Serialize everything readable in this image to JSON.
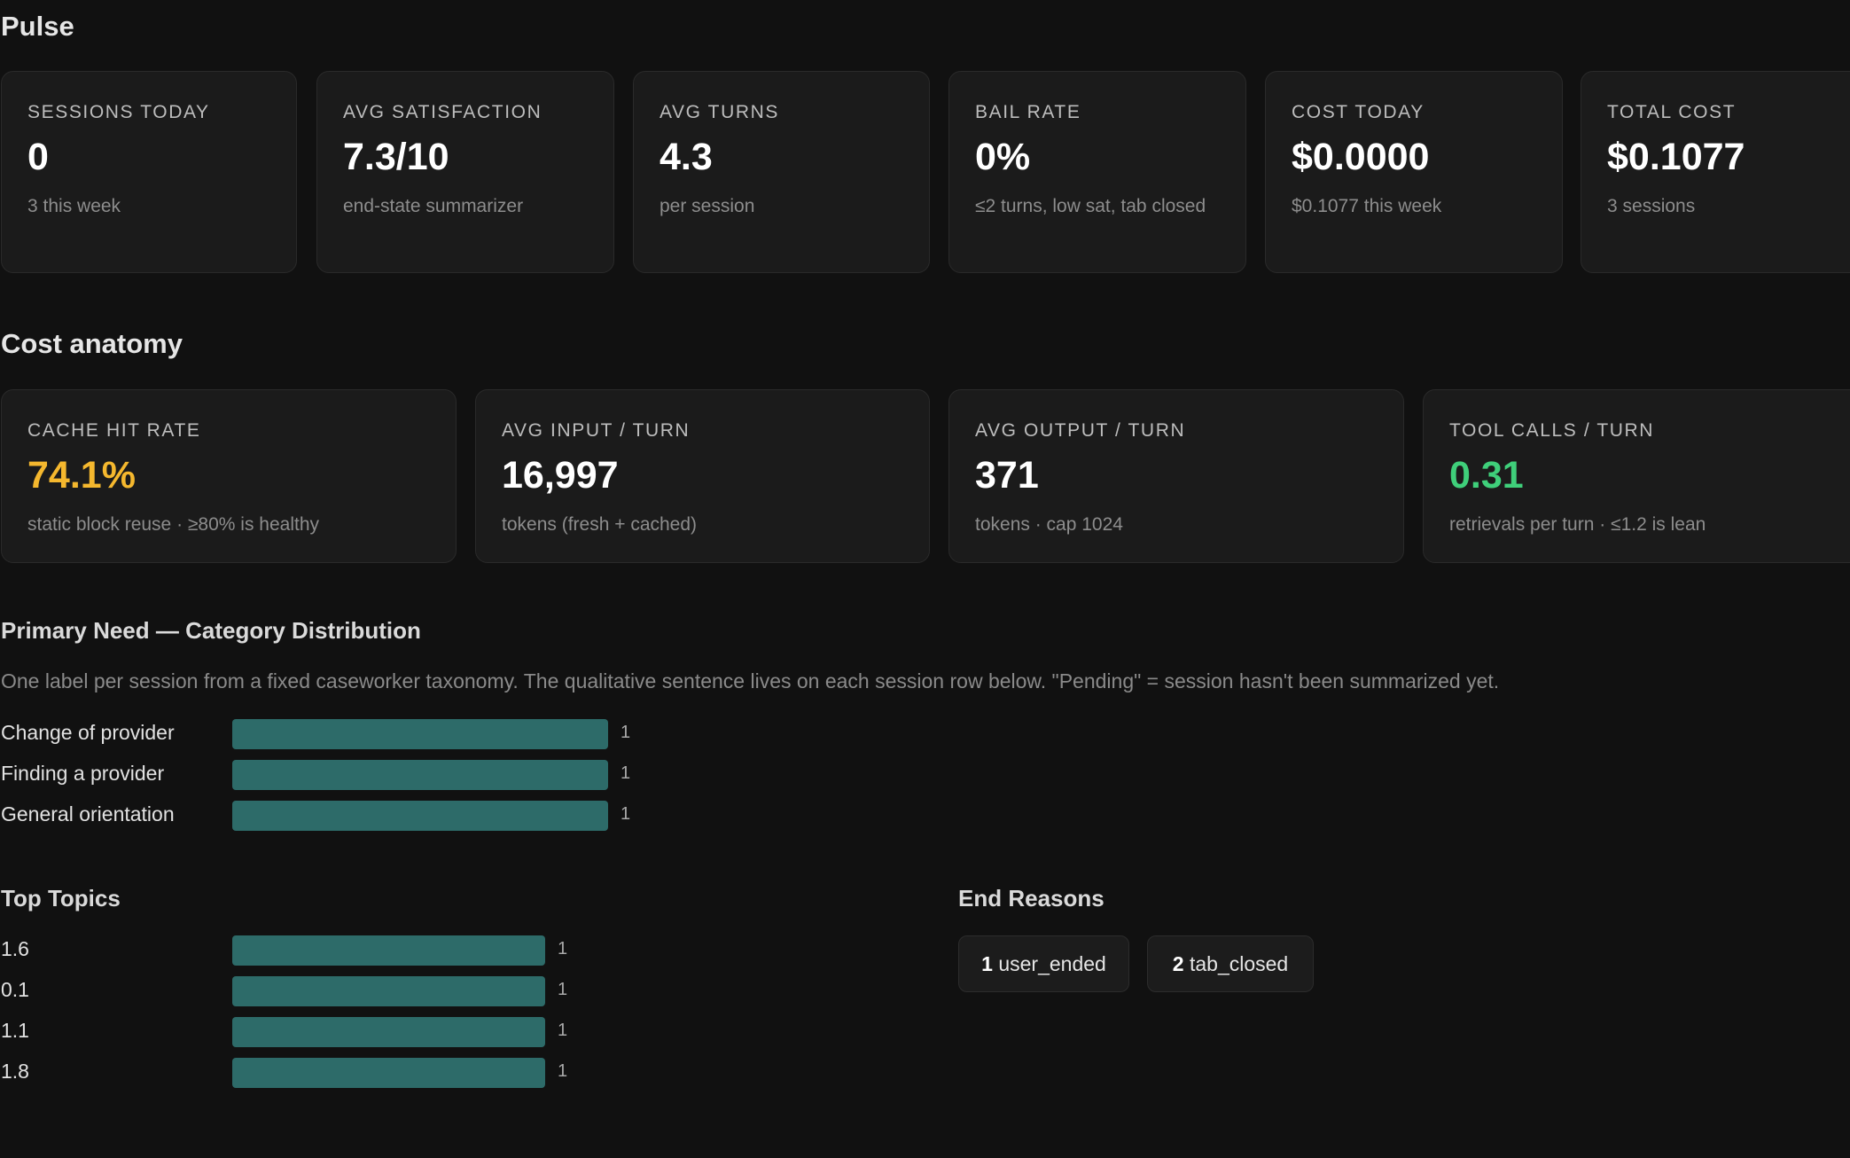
{
  "pulse": {
    "title": "Pulse",
    "cards": [
      {
        "label": "SESSIONS TODAY",
        "value": "0",
        "sub": "3 this week"
      },
      {
        "label": "AVG SATISFACTION",
        "value": "7.3/10",
        "sub": "end-state summarizer"
      },
      {
        "label": "AVG TURNS",
        "value": "4.3",
        "sub": "per session"
      },
      {
        "label": "BAIL RATE",
        "value": "0%",
        "sub": "≤2 turns, low sat, tab closed"
      },
      {
        "label": "COST TODAY",
        "value": "$0.0000",
        "sub": "$0.1077 this week"
      },
      {
        "label": "TOTAL COST",
        "value": "$0.1077",
        "sub": "3 sessions"
      }
    ]
  },
  "cost": {
    "title": "Cost anatomy",
    "cards": [
      {
        "label": "CACHE HIT RATE",
        "value": "74.1%",
        "sub": "static block reuse · ≥80% is healthy",
        "color": "#f5b82e"
      },
      {
        "label": "AVG INPUT / TURN",
        "value": "16,997",
        "sub": "tokens (fresh + cached)"
      },
      {
        "label": "AVG OUTPUT / TURN",
        "value": "371",
        "sub": "tokens · cap 1024"
      },
      {
        "label": "TOOL CALLS / TURN",
        "value": "0.31",
        "sub": "retrievals per turn · ≤1.2 is lean",
        "color": "#3fcf7a"
      }
    ]
  },
  "primary_need": {
    "title": "Primary Need — Category Distribution",
    "description": "One label per session from a fixed caseworker taxonomy. The qualitative sentence lives on each session row below. \"Pending\" = session hasn't been summarized yet.",
    "items": [
      {
        "label": "Change of provider",
        "count": "1"
      },
      {
        "label": "Finding a provider",
        "count": "1"
      },
      {
        "label": "General orientation",
        "count": "1"
      }
    ]
  },
  "top_topics": {
    "title": "Top Topics",
    "items": [
      {
        "label": "1.6",
        "count": "1"
      },
      {
        "label": "0.1",
        "count": "1"
      },
      {
        "label": "1.1",
        "count": "1"
      },
      {
        "label": "1.8",
        "count": "1"
      }
    ]
  },
  "end_reasons": {
    "title": "End Reasons",
    "pills": [
      {
        "count": "1",
        "label": "user_ended"
      },
      {
        "count": "2",
        "label": "tab_closed"
      }
    ]
  },
  "colors": {
    "background": "#111111",
    "card": "#1b1b1b",
    "bar": "#2d6b69",
    "amber": "#f5b82e",
    "green": "#3fcf7a"
  }
}
